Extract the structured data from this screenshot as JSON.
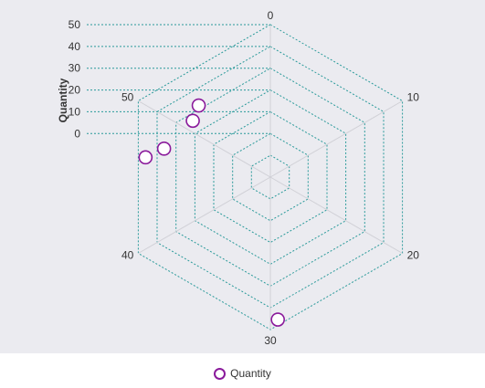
{
  "chart_data": {
    "type": "radar-scatter",
    "angular_axis": {
      "ticks": [
        "0",
        "10",
        "20",
        "30",
        "40",
        "50"
      ],
      "range": [
        0,
        60
      ]
    },
    "radial_axis": {
      "title": "Quantity",
      "ticks": [
        "0",
        "10",
        "20",
        "30",
        "40",
        "50"
      ],
      "range": [
        -20,
        50
      ]
    },
    "grid": true,
    "legend_position": "bottom-center",
    "series": [
      {
        "name": "Quantity",
        "points": [
          {
            "angle": 29.5,
            "value": 45.5
          },
          {
            "angle": 46.5,
            "value": 38
          },
          {
            "angle": 47.5,
            "value": 30.5
          },
          {
            "angle": 51,
            "value": 24
          },
          {
            "angle": 52.5,
            "value": 26.5
          }
        ]
      }
    ]
  },
  "colors": {
    "plot_background": "#ebebf0",
    "grid_line": "#2a9a9a",
    "spoke_line": "#d0d0d6",
    "marker_stroke": "#8a1a9b",
    "text": "#333333"
  },
  "legend": {
    "label": "Quantity",
    "icon": "circle-marker-icon"
  }
}
